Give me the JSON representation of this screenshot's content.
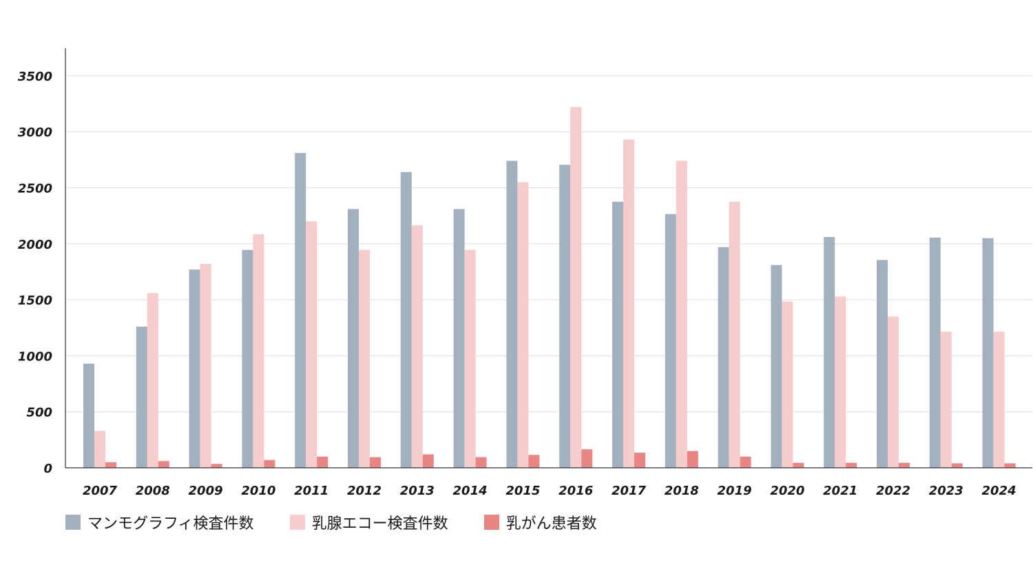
{
  "chart_data": {
    "type": "bar",
    "categories": [
      "2007",
      "2008",
      "2009",
      "2010",
      "2011",
      "2012",
      "2013",
      "2014",
      "2015",
      "2016",
      "2017",
      "2018",
      "2019",
      "2020",
      "2021",
      "2022",
      "2023",
      "2024"
    ],
    "series": [
      {
        "name": "マンモグラフィ検査件数",
        "color": "#a2b0bf",
        "values": [
          930,
          1260,
          1770,
          1945,
          2810,
          2310,
          2640,
          2310,
          2740,
          2705,
          2375,
          2265,
          1970,
          1810,
          2060,
          1855,
          2055,
          2050
        ]
      },
      {
        "name": "乳腺エコー検査件数",
        "color": "#f7cccd",
        "values": [
          330,
          1560,
          1820,
          2085,
          2200,
          1945,
          2165,
          1945,
          2550,
          3220,
          2930,
          2740,
          2375,
          1485,
          1530,
          1350,
          1215,
          1215
        ]
      },
      {
        "name": "乳がん患者数",
        "color": "#e98585",
        "values": [
          50,
          60,
          35,
          70,
          100,
          95,
          120,
          95,
          115,
          165,
          135,
          150,
          100,
          45,
          45,
          45,
          40,
          40
        ]
      }
    ],
    "y_ticks": [
      0,
      500,
      1000,
      1500,
      2000,
      2500,
      3000,
      3500
    ],
    "ylim": [
      0,
      3750
    ],
    "grid": true,
    "legend": "bottom-left"
  }
}
